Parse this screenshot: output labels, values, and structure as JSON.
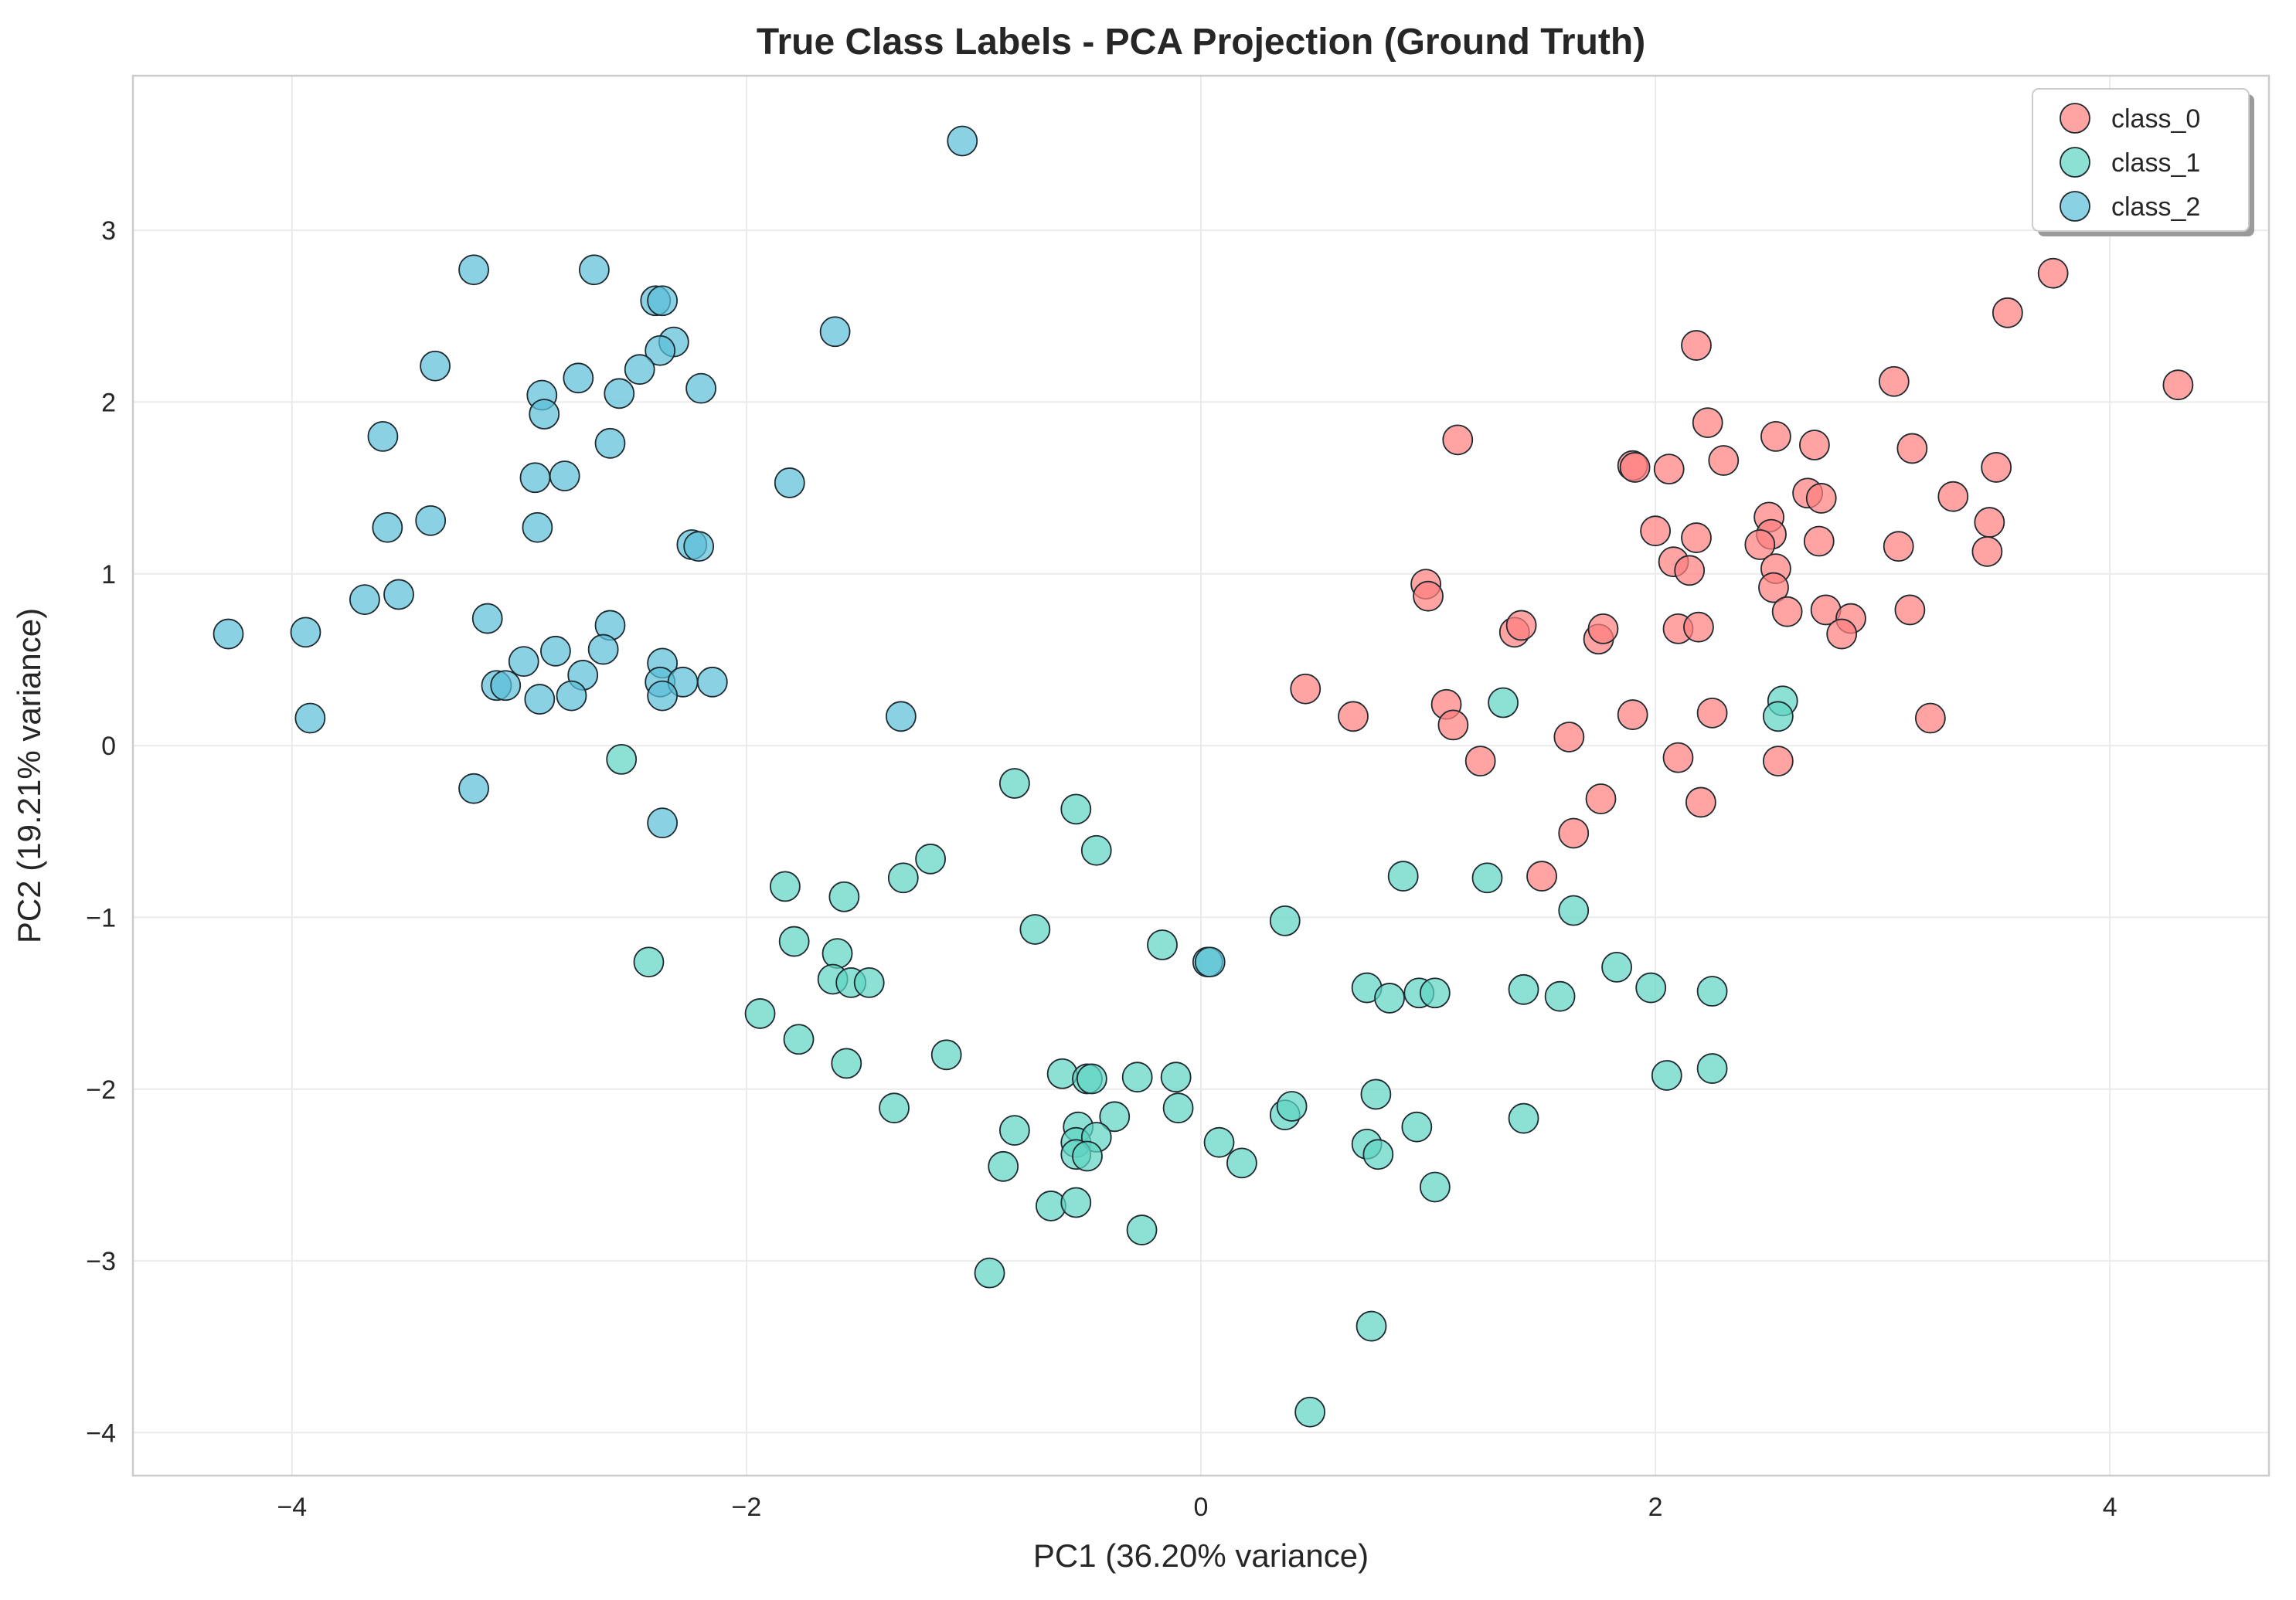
{
  "chart_data": {
    "type": "scatter",
    "title": "True Class Labels - PCA Projection (Ground Truth)",
    "xlabel": "PC1 (36.20% variance)",
    "ylabel": "PC2 (19.21% variance)",
    "xlim": [
      -4.7,
      4.7
    ],
    "ylim": [
      -4.25,
      3.9
    ],
    "xticks": [
      -4,
      -2,
      0,
      2,
      4
    ],
    "xtick_labels": [
      "−4",
      "−2",
      "0",
      "2",
      "4"
    ],
    "yticks": [
      -4,
      -3,
      -2,
      -1,
      0,
      1,
      2,
      3
    ],
    "ytick_labels": [
      "−4",
      "−3",
      "−2",
      "−1",
      "0",
      "1",
      "2",
      "3"
    ],
    "grid": true,
    "legend_position": "top-right",
    "series": [
      {
        "name": "class_0",
        "color": "#ff7f7f",
        "points": [
          [
            3.75,
            2.75
          ],
          [
            3.55,
            2.52
          ],
          [
            4.3,
            2.1
          ],
          [
            3.05,
            2.12
          ],
          [
            2.18,
            2.33
          ],
          [
            2.23,
            1.88
          ],
          [
            2.53,
            1.8
          ],
          [
            2.7,
            1.75
          ],
          [
            3.13,
            1.73
          ],
          [
            1.13,
            1.78
          ],
          [
            1.9,
            1.63
          ],
          [
            1.91,
            1.62
          ],
          [
            2.06,
            1.61
          ],
          [
            2.3,
            1.66
          ],
          [
            3.5,
            1.62
          ],
          [
            2.67,
            1.47
          ],
          [
            2.73,
            1.44
          ],
          [
            3.31,
            1.45
          ],
          [
            2.5,
            1.33
          ],
          [
            3.47,
            1.3
          ],
          [
            2.0,
            1.25
          ],
          [
            2.51,
            1.23
          ],
          [
            2.18,
            1.21
          ],
          [
            2.46,
            1.17
          ],
          [
            2.72,
            1.19
          ],
          [
            3.07,
            1.16
          ],
          [
            3.46,
            1.13
          ],
          [
            2.08,
            1.07
          ],
          [
            2.15,
            1.02
          ],
          [
            2.53,
            1.03
          ],
          [
            0.99,
            0.94
          ],
          [
            2.52,
            0.92
          ],
          [
            1.0,
            0.87
          ],
          [
            2.58,
            0.78
          ],
          [
            2.75,
            0.79
          ],
          [
            2.86,
            0.74
          ],
          [
            3.12,
            0.79
          ],
          [
            1.38,
            0.66
          ],
          [
            1.41,
            0.7
          ],
          [
            1.75,
            0.62
          ],
          [
            1.77,
            0.68
          ],
          [
            2.1,
            0.68
          ],
          [
            2.19,
            0.69
          ],
          [
            2.82,
            0.65
          ],
          [
            0.46,
            0.33
          ],
          [
            1.08,
            0.24
          ],
          [
            0.67,
            0.17
          ],
          [
            1.11,
            0.12
          ],
          [
            1.9,
            0.18
          ],
          [
            2.25,
            0.19
          ],
          [
            3.21,
            0.16
          ],
          [
            1.62,
            0.05
          ],
          [
            2.1,
            -0.07
          ],
          [
            1.23,
            -0.09
          ],
          [
            2.54,
            -0.09
          ],
          [
            1.76,
            -0.31
          ],
          [
            2.2,
            -0.33
          ],
          [
            1.64,
            -0.51
          ],
          [
            1.5,
            -0.76
          ]
        ]
      },
      {
        "name": "class_1",
        "color": "#5fd4c4",
        "points": [
          [
            1.33,
            0.25
          ],
          [
            2.56,
            0.26
          ],
          [
            2.54,
            0.17
          ],
          [
            -2.55,
            -0.08
          ],
          [
            -0.82,
            -0.22
          ],
          [
            -0.55,
            -0.37
          ],
          [
            -0.46,
            -0.61
          ],
          [
            -1.19,
            -0.66
          ],
          [
            -1.31,
            -0.77
          ],
          [
            -1.83,
            -0.82
          ],
          [
            -1.57,
            -0.88
          ],
          [
            0.89,
            -0.76
          ],
          [
            1.26,
            -0.77
          ],
          [
            1.64,
            -0.96
          ],
          [
            -0.73,
            -1.07
          ],
          [
            -1.79,
            -1.14
          ],
          [
            -0.17,
            -1.16
          ],
          [
            0.37,
            -1.02
          ],
          [
            0.03,
            -1.26
          ],
          [
            -2.43,
            -1.26
          ],
          [
            -1.6,
            -1.21
          ],
          [
            -1.62,
            -1.36
          ],
          [
            -1.54,
            -1.38
          ],
          [
            -1.46,
            -1.38
          ],
          [
            0.73,
            -1.41
          ],
          [
            0.83,
            -1.47
          ],
          [
            0.96,
            -1.44
          ],
          [
            1.03,
            -1.44
          ],
          [
            1.42,
            -1.42
          ],
          [
            1.58,
            -1.46
          ],
          [
            1.83,
            -1.29
          ],
          [
            1.98,
            -1.41
          ],
          [
            2.25,
            -1.43
          ],
          [
            -1.94,
            -1.56
          ],
          [
            -1.77,
            -1.71
          ],
          [
            -1.56,
            -1.85
          ],
          [
            -1.12,
            -1.8
          ],
          [
            -0.61,
            -1.91
          ],
          [
            -0.5,
            -1.94
          ],
          [
            -0.48,
            -1.94
          ],
          [
            -0.28,
            -1.93
          ],
          [
            -0.11,
            -1.93
          ],
          [
            2.05,
            -1.92
          ],
          [
            2.25,
            -1.88
          ],
          [
            -1.35,
            -2.11
          ],
          [
            -0.1,
            -2.11
          ],
          [
            -0.38,
            -2.16
          ],
          [
            0.37,
            -2.15
          ],
          [
            0.4,
            -2.1
          ],
          [
            0.77,
            -2.03
          ],
          [
            1.42,
            -2.17
          ],
          [
            -0.54,
            -2.22
          ],
          [
            -0.55,
            -2.31
          ],
          [
            -0.82,
            -2.24
          ],
          [
            -0.46,
            -2.28
          ],
          [
            0.08,
            -2.31
          ],
          [
            0.73,
            -2.32
          ],
          [
            0.95,
            -2.22
          ],
          [
            -0.55,
            -2.38
          ],
          [
            -0.5,
            -2.39
          ],
          [
            0.78,
            -2.38
          ],
          [
            -0.87,
            -2.45
          ],
          [
            0.18,
            -2.43
          ],
          [
            1.03,
            -2.57
          ],
          [
            -0.66,
            -2.68
          ],
          [
            -0.55,
            -2.66
          ],
          [
            -0.26,
            -2.82
          ],
          [
            -0.93,
            -3.07
          ],
          [
            0.75,
            -3.38
          ],
          [
            0.48,
            -3.88
          ]
        ]
      },
      {
        "name": "class_2",
        "color": "#5cbfd8",
        "points": [
          [
            -1.05,
            3.52
          ],
          [
            -3.2,
            2.77
          ],
          [
            -2.67,
            2.77
          ],
          [
            -2.4,
            2.59
          ],
          [
            -2.37,
            2.59
          ],
          [
            -1.61,
            2.41
          ],
          [
            -2.32,
            2.35
          ],
          [
            -2.38,
            2.3
          ],
          [
            -2.47,
            2.19
          ],
          [
            -3.37,
            2.21
          ],
          [
            -2.74,
            2.14
          ],
          [
            -2.9,
            2.04
          ],
          [
            -2.56,
            2.05
          ],
          [
            -2.2,
            2.08
          ],
          [
            -2.89,
            1.93
          ],
          [
            -3.6,
            1.8
          ],
          [
            -2.6,
            1.76
          ],
          [
            -2.93,
            1.56
          ],
          [
            -2.8,
            1.57
          ],
          [
            -1.81,
            1.53
          ],
          [
            -3.58,
            1.27
          ],
          [
            -3.39,
            1.31
          ],
          [
            -2.92,
            1.27
          ],
          [
            -2.24,
            1.17
          ],
          [
            -2.21,
            1.16
          ],
          [
            -3.68,
            0.85
          ],
          [
            -3.53,
            0.88
          ],
          [
            -3.14,
            0.74
          ],
          [
            -2.6,
            0.7
          ],
          [
            -4.28,
            0.65
          ],
          [
            -3.94,
            0.66
          ],
          [
            -2.84,
            0.55
          ],
          [
            -2.63,
            0.56
          ],
          [
            -2.98,
            0.49
          ],
          [
            -2.37,
            0.48
          ],
          [
            -2.72,
            0.41
          ],
          [
            -3.1,
            0.35
          ],
          [
            -3.06,
            0.35
          ],
          [
            -2.38,
            0.37
          ],
          [
            -2.28,
            0.37
          ],
          [
            -2.15,
            0.37
          ],
          [
            -2.91,
            0.27
          ],
          [
            -2.77,
            0.29
          ],
          [
            -2.37,
            0.29
          ],
          [
            -3.92,
            0.16
          ],
          [
            -1.32,
            0.17
          ],
          [
            -3.2,
            -0.25
          ],
          [
            -2.37,
            -0.45
          ],
          [
            0.04,
            -1.26
          ]
        ]
      }
    ]
  }
}
